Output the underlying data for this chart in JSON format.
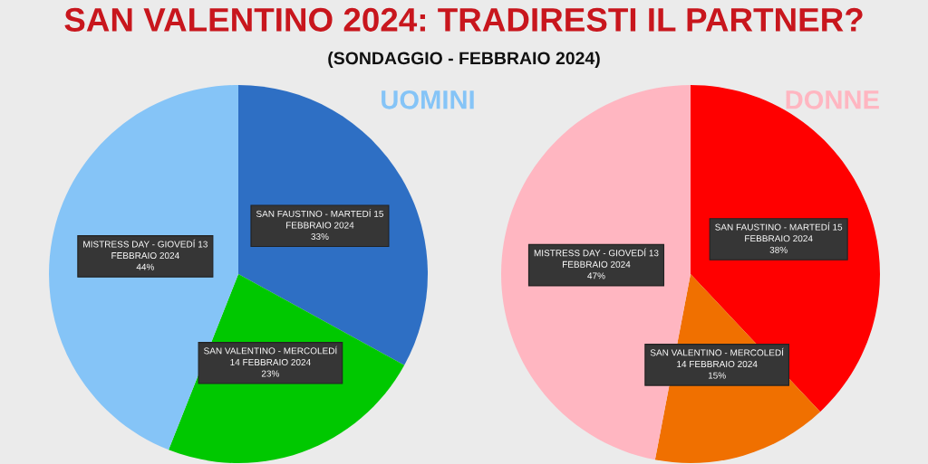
{
  "chart_data": [
    {
      "type": "other",
      "title": "SAN VALENTINO 2024: TRADIRESTI IL PARTNER?",
      "subtitle": "(SONDAGGIO - FEBBRAIO 2024)"
    },
    {
      "type": "pie",
      "title": "UOMINI",
      "categories": [
        "SAN FAUSTINO - MARTEDÍ 15\nFEBBRAIO 2024",
        "SAN VALENTINO - MERCOLEDÍ\n14 FEBBRAIO 2024",
        "MISTRESS DAY - GIOVEDÍ 13\nFEBBRAIO 2024"
      ],
      "values": [
        33,
        23,
        44
      ],
      "colors": [
        "#2e6fc4",
        "#00c800",
        "#85c4f7"
      ],
      "value_labels": [
        "33%",
        "23%",
        "44%"
      ]
    },
    {
      "type": "pie",
      "title": "DONNE",
      "categories": [
        "SAN FAUSTINO - MARTEDÍ 15\nFEBBRAIO 2024",
        "SAN VALENTINO - MERCOLEDÍ\n14 FEBBRAIO 2024",
        "MISTRESS DAY - GIOVEDÍ 13\nFEBBRAIO 2024"
      ],
      "values": [
        38,
        15,
        47
      ],
      "colors": [
        "#ff0000",
        "#f07000",
        "#ffb6c1"
      ],
      "value_labels": [
        "38%",
        "15%",
        "47%"
      ]
    }
  ]
}
